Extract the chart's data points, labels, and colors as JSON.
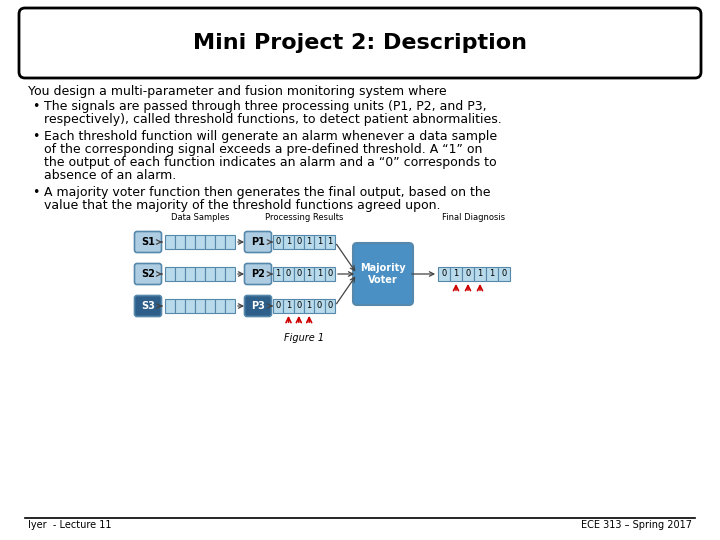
{
  "title": "Mini Project 2: Description",
  "bg_color": "#ffffff",
  "title_box_edge": "#000000",
  "footer_left": "Iyer  - Lecture 11",
  "footer_right": "ECE 313 – Spring 2017",
  "intro_line": "You design a multi-parameter and fusion monitoring system where",
  "bullet1_lines": [
    "The signals are passed through three processing units (P1, P2, and P3,",
    "respectively), called threshold functions, to detect patient abnormalities."
  ],
  "bullet2_lines": [
    "Each threshold function will generate an alarm whenever a data sample",
    "of the corresponding signal exceeds a pre-defined threshold. A “1” on",
    "the output of each function indicates an alarm and a “0” corresponds to",
    "absence of an alarm."
  ],
  "bullet3_lines": [
    "A majority voter function then generates the final output, based on the",
    "value that the majority of the threshold functions agreed upon."
  ],
  "figure_label": "Figure 1",
  "signals": [
    "S1",
    "S2",
    "S3"
  ],
  "processors": [
    "P1",
    "P2",
    "P3"
  ],
  "p1_output": [
    "0",
    "1",
    "0",
    "1",
    "1",
    "1"
  ],
  "p2_output": [
    "1",
    "0",
    "0",
    "1",
    "1",
    "0"
  ],
  "p3_output": [
    "0",
    "1",
    "0",
    "1",
    "0",
    "0"
  ],
  "final_output": [
    "0",
    "1",
    "0",
    "1",
    "1",
    "0"
  ],
  "signal_bg": [
    "#aecde3",
    "#aecde3",
    "#2e5f8a"
  ],
  "signal_text": [
    "#000000",
    "#000000",
    "#ffffff"
  ],
  "proc_bg": [
    "#aecde3",
    "#aecde3",
    "#2e5f8a"
  ],
  "proc_text": [
    "#000000",
    "#000000",
    "#ffffff"
  ],
  "sample_color": "#b8daea",
  "output_color": "#b8daea",
  "majority_color": "#4a90c4",
  "final_color": "#b8daea",
  "edge_color": "#5588aa",
  "arrow_red": "#cc0000",
  "arrow_dark": "#444444"
}
